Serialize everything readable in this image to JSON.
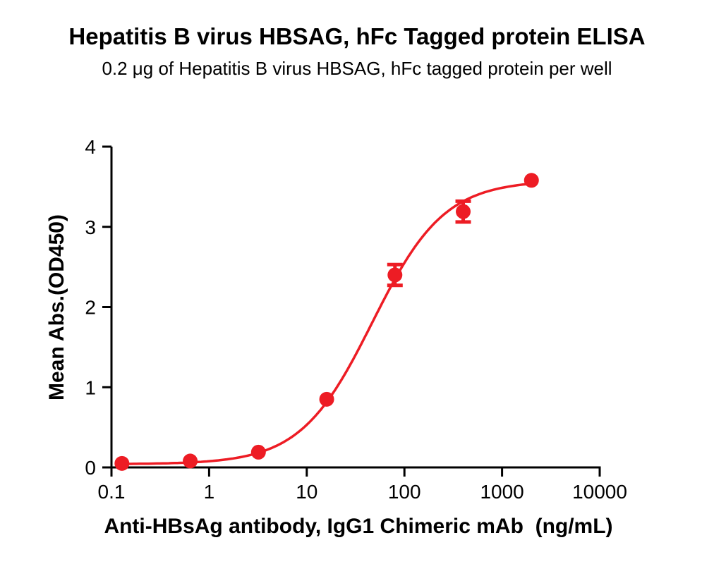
{
  "header": {
    "title": "Hepatitis B virus HBSAG, hFc Tagged protein ELISA",
    "subtitle": "0.2 μg of Hepatitis B virus HBSAG, hFc tagged protein per well"
  },
  "chart_data": {
    "type": "scatter",
    "title": "Hepatitis B virus HBSAG, hFc Tagged protein ELISA",
    "subtitle": "0.2 μg of Hepatitis B virus HBSAG, hFc tagged protein per well",
    "xlabel": "Anti-HBsAg antibody, IgG1 Chimeric mAb  (ng/mL)",
    "ylabel": "Mean Abs.(OD450)",
    "x_scale": "log10",
    "xlim": [
      0.1,
      10000
    ],
    "ylim": [
      0,
      4
    ],
    "x_ticks": [
      0.1,
      1,
      10,
      100,
      1000,
      10000
    ],
    "x_tick_labels": [
      "0.1",
      "1",
      "10",
      "100",
      "1000",
      "10000"
    ],
    "y_ticks": [
      0,
      1,
      2,
      3,
      4
    ],
    "y_tick_labels": [
      "0",
      "1",
      "2",
      "3",
      "4"
    ],
    "grid": false,
    "legend": "none",
    "colors": {
      "series": "#ED1C24",
      "axis": "#000000",
      "background": "#ffffff"
    },
    "series": [
      {
        "marker": "circle",
        "color": "#ED1C24",
        "points": [
          {
            "x": 0.128,
            "y": 0.05,
            "err": 0
          },
          {
            "x": 0.64,
            "y": 0.08,
            "err": 0
          },
          {
            "x": 3.2,
            "y": 0.19,
            "err": 0
          },
          {
            "x": 16,
            "y": 0.85,
            "err": 0
          },
          {
            "x": 80,
            "y": 2.4,
            "err": 0.13
          },
          {
            "x": 400,
            "y": 3.19,
            "err": 0.13
          },
          {
            "x": 2000,
            "y": 3.58,
            "err": 0
          }
        ],
        "fit": {
          "model": "4PL",
          "bottom": 0.04,
          "top": 3.58,
          "ec50": 47,
          "hill": 1.18,
          "x_range": [
            0.128,
            2000
          ]
        }
      }
    ]
  }
}
